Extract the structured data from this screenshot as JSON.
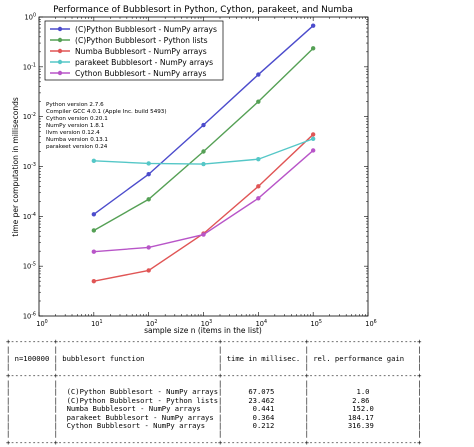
{
  "chart_data": {
    "type": "line",
    "title": "Performance of Bubblesort in Python, Cython, parakeet, and Numba",
    "xlabel": "sample size n (items in the list)",
    "ylabel": "time per computation in milliseconds",
    "xscale": "log",
    "yscale": "log",
    "xlim": [
      1,
      1000000
    ],
    "ylim": [
      1e-06,
      1
    ],
    "x": [
      10,
      100,
      1000,
      10000,
      100000
    ],
    "x_ticks": [
      {
        "value": 1,
        "base": "10",
        "exp": "0"
      },
      {
        "value": 10,
        "base": "10",
        "exp": "1"
      },
      {
        "value": 100,
        "base": "10",
        "exp": "2"
      },
      {
        "value": 1000,
        "base": "10",
        "exp": "3"
      },
      {
        "value": 10000,
        "base": "10",
        "exp": "4"
      },
      {
        "value": 100000,
        "base": "10",
        "exp": "5"
      },
      {
        "value": 1000000,
        "base": "10",
        "exp": "6"
      }
    ],
    "y_ticks": [
      {
        "value": 1,
        "base": "10",
        "exp": "0"
      },
      {
        "value": 0.1,
        "base": "10",
        "exp": "-1"
      },
      {
        "value": 0.01,
        "base": "10",
        "exp": "-2"
      },
      {
        "value": 0.001,
        "base": "10",
        "exp": "-3"
      },
      {
        "value": 0.0001,
        "base": "10",
        "exp": "-4"
      },
      {
        "value": 1e-05,
        "base": "10",
        "exp": "-5"
      },
      {
        "value": 1e-06,
        "base": "10",
        "exp": "-6"
      }
    ],
    "legend_position": "top-left",
    "series": [
      {
        "name": "(C)Python Bubblesort - NumPy arrays",
        "color": "#4c4ccc",
        "values": [
          0.00011,
          0.0007,
          0.0068,
          0.07,
          0.67
        ]
      },
      {
        "name": "(C)Python Bubblesort - Python lists",
        "color": "#55a055",
        "values": [
          5.2e-05,
          0.00022,
          0.002,
          0.02,
          0.235
        ]
      },
      {
        "name": "Numba Bubblesort - NumPy arrays",
        "color": "#e05555",
        "values": [
          5e-06,
          8.2e-06,
          4.5e-05,
          0.0004,
          0.0044
        ]
      },
      {
        "name": "parakeet Bubblesort - NumPy arrays",
        "color": "#55c7c7",
        "values": [
          0.0013,
          0.00115,
          0.00112,
          0.0014,
          0.0036
        ]
      },
      {
        "name": "Cython Bubblesort - NumPy arrays",
        "color": "#b855c8",
        "values": [
          1.95e-05,
          2.38e-05,
          4.3e-05,
          0.00023,
          0.0021
        ]
      }
    ],
    "version_lines": [
      "Python version 2.7.6",
      "Compiler GCC 4.0.1 (Apple Inc. build 5493)",
      "Cython version 0.20.1",
      "NumPy version 1.8.1",
      "llvm version 0.12.4",
      "Numba version 0.13.1",
      "parakeet version 0.24"
    ]
  },
  "results_table": {
    "sample_label": "n=100000",
    "headers": [
      "bubblesort function",
      "time in millisec.",
      "rel. performance gain"
    ],
    "rows": [
      [
        "(C)Python Bubblesort - NumPy arrays",
        "67.075",
        "1.0"
      ],
      [
        "(C)Python Bubblesort - Python lists",
        "23.462",
        "2.86"
      ],
      [
        "Numba Bubblesort - NumPy arrays",
        "0.441",
        "152.0"
      ],
      [
        "parakeet Bubblesort - NumPy arrays",
        "0.364",
        "184.17"
      ],
      [
        "Cython Bubblesort - NumPy arrays",
        "0.212",
        "316.39"
      ]
    ]
  }
}
